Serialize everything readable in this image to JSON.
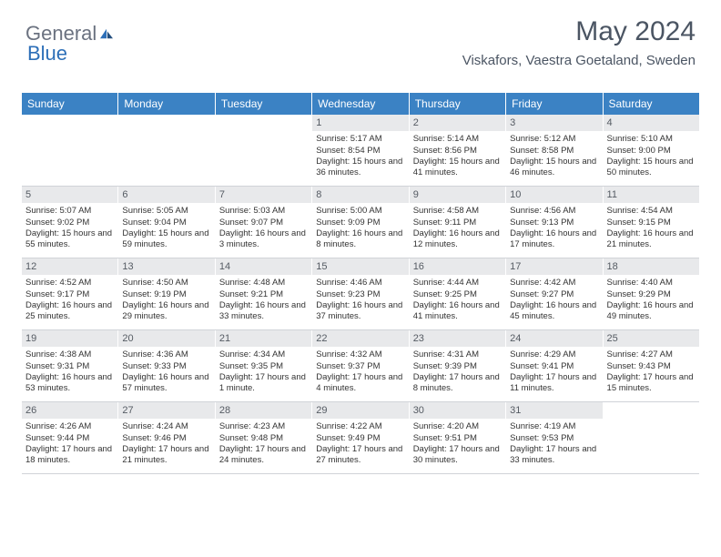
{
  "brand": {
    "part1": "General",
    "part2": "Blue"
  },
  "colors": {
    "header_bg": "#3b82c4",
    "header_text": "#ffffff",
    "daynum_bg": "#e8e9eb",
    "daynum_text": "#555b63",
    "body_text": "#333333",
    "border": "#d0d3d8",
    "brand_gray": "#6b7280",
    "brand_blue": "#2d6fb8"
  },
  "title": "May 2024",
  "location": "Viskafors, Vaestra Goetaland, Sweden",
  "weekdays": [
    "Sunday",
    "Monday",
    "Tuesday",
    "Wednesday",
    "Thursday",
    "Friday",
    "Saturday"
  ],
  "weeks": [
    [
      {
        "n": "",
        "sr": "",
        "ss": "",
        "dl": ""
      },
      {
        "n": "",
        "sr": "",
        "ss": "",
        "dl": ""
      },
      {
        "n": "",
        "sr": "",
        "ss": "",
        "dl": ""
      },
      {
        "n": "1",
        "sr": "Sunrise: 5:17 AM",
        "ss": "Sunset: 8:54 PM",
        "dl": "Daylight: 15 hours and 36 minutes."
      },
      {
        "n": "2",
        "sr": "Sunrise: 5:14 AM",
        "ss": "Sunset: 8:56 PM",
        "dl": "Daylight: 15 hours and 41 minutes."
      },
      {
        "n": "3",
        "sr": "Sunrise: 5:12 AM",
        "ss": "Sunset: 8:58 PM",
        "dl": "Daylight: 15 hours and 46 minutes."
      },
      {
        "n": "4",
        "sr": "Sunrise: 5:10 AM",
        "ss": "Sunset: 9:00 PM",
        "dl": "Daylight: 15 hours and 50 minutes."
      }
    ],
    [
      {
        "n": "5",
        "sr": "Sunrise: 5:07 AM",
        "ss": "Sunset: 9:02 PM",
        "dl": "Daylight: 15 hours and 55 minutes."
      },
      {
        "n": "6",
        "sr": "Sunrise: 5:05 AM",
        "ss": "Sunset: 9:04 PM",
        "dl": "Daylight: 15 hours and 59 minutes."
      },
      {
        "n": "7",
        "sr": "Sunrise: 5:03 AM",
        "ss": "Sunset: 9:07 PM",
        "dl": "Daylight: 16 hours and 3 minutes."
      },
      {
        "n": "8",
        "sr": "Sunrise: 5:00 AM",
        "ss": "Sunset: 9:09 PM",
        "dl": "Daylight: 16 hours and 8 minutes."
      },
      {
        "n": "9",
        "sr": "Sunrise: 4:58 AM",
        "ss": "Sunset: 9:11 PM",
        "dl": "Daylight: 16 hours and 12 minutes."
      },
      {
        "n": "10",
        "sr": "Sunrise: 4:56 AM",
        "ss": "Sunset: 9:13 PM",
        "dl": "Daylight: 16 hours and 17 minutes."
      },
      {
        "n": "11",
        "sr": "Sunrise: 4:54 AM",
        "ss": "Sunset: 9:15 PM",
        "dl": "Daylight: 16 hours and 21 minutes."
      }
    ],
    [
      {
        "n": "12",
        "sr": "Sunrise: 4:52 AM",
        "ss": "Sunset: 9:17 PM",
        "dl": "Daylight: 16 hours and 25 minutes."
      },
      {
        "n": "13",
        "sr": "Sunrise: 4:50 AM",
        "ss": "Sunset: 9:19 PM",
        "dl": "Daylight: 16 hours and 29 minutes."
      },
      {
        "n": "14",
        "sr": "Sunrise: 4:48 AM",
        "ss": "Sunset: 9:21 PM",
        "dl": "Daylight: 16 hours and 33 minutes."
      },
      {
        "n": "15",
        "sr": "Sunrise: 4:46 AM",
        "ss": "Sunset: 9:23 PM",
        "dl": "Daylight: 16 hours and 37 minutes."
      },
      {
        "n": "16",
        "sr": "Sunrise: 4:44 AM",
        "ss": "Sunset: 9:25 PM",
        "dl": "Daylight: 16 hours and 41 minutes."
      },
      {
        "n": "17",
        "sr": "Sunrise: 4:42 AM",
        "ss": "Sunset: 9:27 PM",
        "dl": "Daylight: 16 hours and 45 minutes."
      },
      {
        "n": "18",
        "sr": "Sunrise: 4:40 AM",
        "ss": "Sunset: 9:29 PM",
        "dl": "Daylight: 16 hours and 49 minutes."
      }
    ],
    [
      {
        "n": "19",
        "sr": "Sunrise: 4:38 AM",
        "ss": "Sunset: 9:31 PM",
        "dl": "Daylight: 16 hours and 53 minutes."
      },
      {
        "n": "20",
        "sr": "Sunrise: 4:36 AM",
        "ss": "Sunset: 9:33 PM",
        "dl": "Daylight: 16 hours and 57 minutes."
      },
      {
        "n": "21",
        "sr": "Sunrise: 4:34 AM",
        "ss": "Sunset: 9:35 PM",
        "dl": "Daylight: 17 hours and 1 minute."
      },
      {
        "n": "22",
        "sr": "Sunrise: 4:32 AM",
        "ss": "Sunset: 9:37 PM",
        "dl": "Daylight: 17 hours and 4 minutes."
      },
      {
        "n": "23",
        "sr": "Sunrise: 4:31 AM",
        "ss": "Sunset: 9:39 PM",
        "dl": "Daylight: 17 hours and 8 minutes."
      },
      {
        "n": "24",
        "sr": "Sunrise: 4:29 AM",
        "ss": "Sunset: 9:41 PM",
        "dl": "Daylight: 17 hours and 11 minutes."
      },
      {
        "n": "25",
        "sr": "Sunrise: 4:27 AM",
        "ss": "Sunset: 9:43 PM",
        "dl": "Daylight: 17 hours and 15 minutes."
      }
    ],
    [
      {
        "n": "26",
        "sr": "Sunrise: 4:26 AM",
        "ss": "Sunset: 9:44 PM",
        "dl": "Daylight: 17 hours and 18 minutes."
      },
      {
        "n": "27",
        "sr": "Sunrise: 4:24 AM",
        "ss": "Sunset: 9:46 PM",
        "dl": "Daylight: 17 hours and 21 minutes."
      },
      {
        "n": "28",
        "sr": "Sunrise: 4:23 AM",
        "ss": "Sunset: 9:48 PM",
        "dl": "Daylight: 17 hours and 24 minutes."
      },
      {
        "n": "29",
        "sr": "Sunrise: 4:22 AM",
        "ss": "Sunset: 9:49 PM",
        "dl": "Daylight: 17 hours and 27 minutes."
      },
      {
        "n": "30",
        "sr": "Sunrise: 4:20 AM",
        "ss": "Sunset: 9:51 PM",
        "dl": "Daylight: 17 hours and 30 minutes."
      },
      {
        "n": "31",
        "sr": "Sunrise: 4:19 AM",
        "ss": "Sunset: 9:53 PM",
        "dl": "Daylight: 17 hours and 33 minutes."
      },
      {
        "n": "",
        "sr": "",
        "ss": "",
        "dl": ""
      }
    ]
  ]
}
